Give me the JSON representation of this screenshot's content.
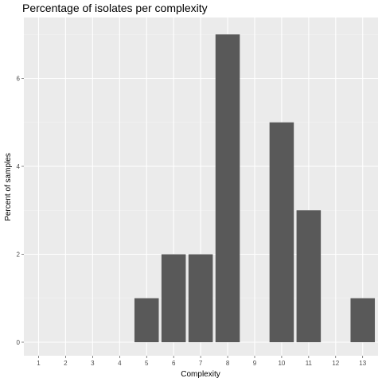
{
  "chart_data": {
    "type": "bar",
    "title": "Percentage of isolates per complexity",
    "xlabel": "Complexity",
    "ylabel": "Percent of samples",
    "categories": [
      "1",
      "2",
      "3",
      "4",
      "5",
      "6",
      "7",
      "8",
      "9",
      "10",
      "11",
      "12",
      "13"
    ],
    "values": [
      0,
      0,
      0,
      0,
      1,
      2,
      2,
      7,
      0,
      5,
      3,
      0,
      1
    ],
    "yticks": [
      0,
      2,
      4,
      6
    ],
    "ylim": [
      0,
      7.35
    ],
    "grid": true,
    "legend": "none",
    "colors": {
      "bar": "#595959",
      "panel": "#ebebeb",
      "grid_major": "#ffffff",
      "tick": "#333333"
    }
  }
}
